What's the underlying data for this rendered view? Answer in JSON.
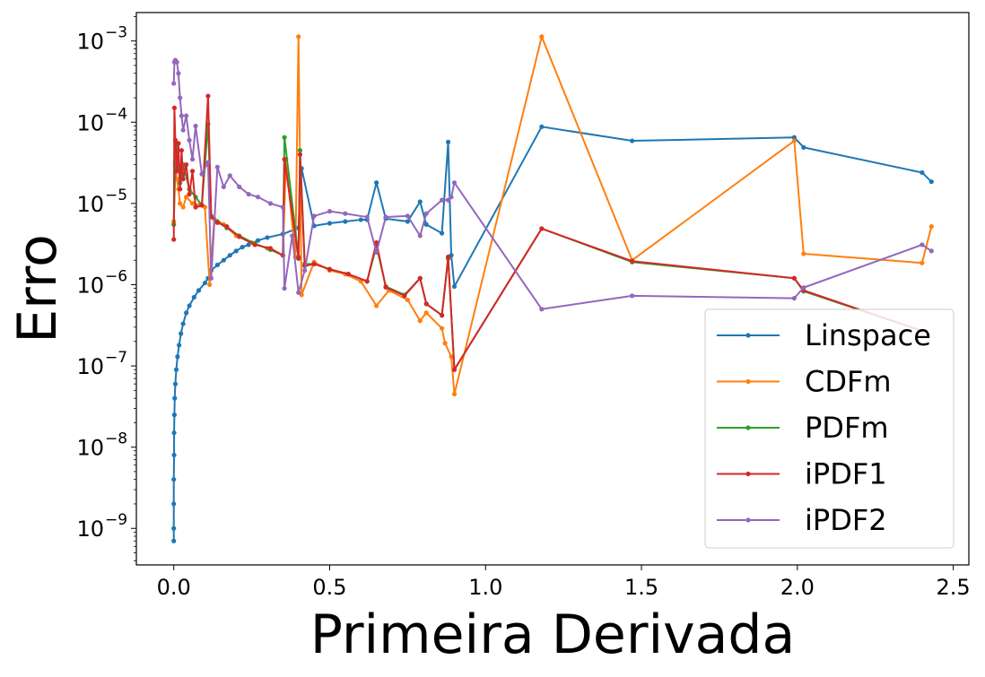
{
  "chart_data": {
    "type": "line",
    "title": "",
    "xlabel": "Primeira Derivada",
    "ylabel": "Erro",
    "xlim": [
      -0.12,
      2.55
    ],
    "ylim_log10": [
      -9.45,
      -2.65
    ],
    "y_scale": "log",
    "grid": false,
    "legend_position": "lower-right",
    "x_ticks": [
      {
        "value": 0.0,
        "label": "0.0"
      },
      {
        "value": 0.5,
        "label": "0.5"
      },
      {
        "value": 1.0,
        "label": "1.0"
      },
      {
        "value": 1.5,
        "label": "1.5"
      },
      {
        "value": 2.0,
        "label": "2.0"
      },
      {
        "value": 2.5,
        "label": "2.5"
      }
    ],
    "y_ticks": [
      {
        "exponent": -9,
        "base": "10",
        "power": "−9"
      },
      {
        "exponent": -8,
        "base": "10",
        "power": "−8"
      },
      {
        "exponent": -7,
        "base": "10",
        "power": "−7"
      },
      {
        "exponent": -6,
        "base": "10",
        "power": "−6"
      },
      {
        "exponent": -5,
        "base": "10",
        "power": "−5"
      },
      {
        "exponent": -4,
        "base": "10",
        "power": "−4"
      },
      {
        "exponent": -3,
        "base": "10",
        "power": "−3"
      }
    ],
    "series": [
      {
        "name": "Linspace",
        "color": "#1f77b4",
        "points": [
          [
            0.0,
            7e-10
          ],
          [
            0.0,
            1e-09
          ],
          [
            0.0,
            2e-09
          ],
          [
            0.0,
            4e-09
          ],
          [
            0.001,
            8e-09
          ],
          [
            0.001,
            1.5e-08
          ],
          [
            0.002,
            2.5e-08
          ],
          [
            0.003,
            4e-08
          ],
          [
            0.005,
            6e-08
          ],
          [
            0.008,
            9e-08
          ],
          [
            0.012,
            1.3e-07
          ],
          [
            0.017,
            1.8e-07
          ],
          [
            0.023,
            2.5e-07
          ],
          [
            0.03,
            3.3e-07
          ],
          [
            0.04,
            4.5e-07
          ],
          [
            0.05,
            5.5e-07
          ],
          [
            0.065,
            7e-07
          ],
          [
            0.08,
            8.5e-07
          ],
          [
            0.1,
            1.05e-06
          ],
          [
            0.11,
            1.2e-06
          ],
          [
            0.12,
            1.5e-06
          ],
          [
            0.14,
            1.75e-06
          ],
          [
            0.16,
            2e-06
          ],
          [
            0.18,
            2.3e-06
          ],
          [
            0.2,
            2.6e-06
          ],
          [
            0.22,
            2.9e-06
          ],
          [
            0.24,
            3.1e-06
          ],
          [
            0.27,
            3.5e-06
          ],
          [
            0.3,
            3.8e-06
          ],
          [
            0.35,
            4.2e-06
          ],
          [
            0.4,
            5e-06
          ],
          [
            0.41,
            2.7e-05
          ],
          [
            0.45,
            5.3e-06
          ],
          [
            0.5,
            5.7e-06
          ],
          [
            0.55,
            6e-06
          ],
          [
            0.6,
            6.3e-06
          ],
          [
            0.62,
            6.3e-06
          ],
          [
            0.65,
            1.8e-05
          ],
          [
            0.68,
            6.5e-06
          ],
          [
            0.75,
            6e-06
          ],
          [
            0.79,
            1.05e-05
          ],
          [
            0.81,
            5.5e-06
          ],
          [
            0.86,
            4.3e-06
          ],
          [
            0.88,
            5.7e-05
          ],
          [
            0.89,
            2.3e-06
          ],
          [
            0.9,
            9.5e-07
          ],
          [
            1.18,
            8.8e-05
          ],
          [
            1.47,
            5.9e-05
          ],
          [
            1.99,
            6.5e-05
          ],
          [
            2.02,
            4.9e-05
          ],
          [
            2.4,
            2.4e-05
          ],
          [
            2.43,
            1.85e-05
          ]
        ]
      },
      {
        "name": "CDFm",
        "color": "#ff7f0e",
        "points": [
          [
            0.0,
            6e-06
          ],
          [
            0.005,
            3e-05
          ],
          [
            0.01,
            2e-05
          ],
          [
            0.015,
            1.5e-05
          ],
          [
            0.02,
            1e-05
          ],
          [
            0.03,
            9e-06
          ],
          [
            0.04,
            1.2e-05
          ],
          [
            0.06,
            1e-05
          ],
          [
            0.08,
            9.5e-06
          ],
          [
            0.1,
            9e-06
          ],
          [
            0.115,
            1e-06
          ],
          [
            0.13,
            6.5e-06
          ],
          [
            0.16,
            5.5e-06
          ],
          [
            0.2,
            4e-06
          ],
          [
            0.25,
            3.3e-06
          ],
          [
            0.3,
            2.8e-06
          ],
          [
            0.35,
            2.3e-06
          ],
          [
            0.36,
            3.5e-05
          ],
          [
            0.39,
            2.2e-06
          ],
          [
            0.4,
            0.00113
          ],
          [
            0.41,
            7.5e-07
          ],
          [
            0.45,
            1.9e-06
          ],
          [
            0.5,
            1.5e-06
          ],
          [
            0.55,
            1.35e-06
          ],
          [
            0.6,
            1.1e-06
          ],
          [
            0.65,
            5.5e-07
          ],
          [
            0.69,
            8.5e-07
          ],
          [
            0.75,
            6.5e-07
          ],
          [
            0.79,
            3.6e-07
          ],
          [
            0.81,
            4.5e-07
          ],
          [
            0.86,
            2.9e-07
          ],
          [
            0.87,
            1.9e-07
          ],
          [
            0.89,
            1.3e-07
          ],
          [
            0.9,
            4.5e-08
          ],
          [
            1.18,
            0.00113
          ],
          [
            1.47,
            2e-06
          ],
          [
            1.99,
            5.9e-05
          ],
          [
            2.02,
            2.4e-06
          ],
          [
            2.4,
            1.85e-06
          ],
          [
            2.43,
            5.2e-06
          ]
        ]
      },
      {
        "name": "PDFm",
        "color": "#2ca02c",
        "points": [
          [
            0.0,
            5.5e-06
          ],
          [
            0.005,
            3.2e-05
          ],
          [
            0.01,
            5e-05
          ],
          [
            0.02,
            1.8e-05
          ],
          [
            0.03,
            3e-05
          ],
          [
            0.05,
            1.5e-05
          ],
          [
            0.07,
            1.2e-05
          ],
          [
            0.09,
            9.5e-06
          ],
          [
            0.11,
            9.5e-05
          ],
          [
            0.12,
            7e-06
          ],
          [
            0.14,
            6e-06
          ],
          [
            0.17,
            5e-06
          ],
          [
            0.21,
            4e-06
          ],
          [
            0.26,
            3.2e-06
          ],
          [
            0.31,
            2.7e-06
          ],
          [
            0.35,
            2.3e-06
          ],
          [
            0.355,
            6.5e-05
          ],
          [
            0.4,
            2.2e-06
          ],
          [
            0.405,
            4.5e-05
          ],
          [
            0.42,
            1.8e-06
          ],
          [
            0.45,
            1.8e-06
          ],
          [
            0.5,
            1.55e-06
          ],
          [
            0.56,
            1.35e-06
          ],
          [
            0.62,
            1.1e-06
          ],
          [
            0.65,
            3e-06
          ],
          [
            0.68,
            9.5e-07
          ],
          [
            0.74,
            7.5e-07
          ],
          [
            0.79,
            1.2e-06
          ],
          [
            0.81,
            5.8e-07
          ],
          [
            0.86,
            4.2e-07
          ],
          [
            0.88,
            2.1e-06
          ],
          [
            0.9,
            9e-08
          ],
          [
            1.18,
            4.9e-06
          ],
          [
            1.47,
            1.9e-06
          ],
          [
            1.99,
            1.2e-06
          ],
          [
            2.02,
            8.3e-07
          ],
          [
            2.4,
            2.7e-07
          ]
        ]
      },
      {
        "name": "iPDF1",
        "color": "#d62728",
        "points": [
          [
            0.0,
            3.6e-06
          ],
          [
            0.002,
            0.00015
          ],
          [
            0.005,
            6e-05
          ],
          [
            0.01,
            2.5e-05
          ],
          [
            0.015,
            5.5e-05
          ],
          [
            0.02,
            1.5e-05
          ],
          [
            0.025,
            4.5e-05
          ],
          [
            0.03,
            2e-05
          ],
          [
            0.04,
            3e-05
          ],
          [
            0.05,
            1.3e-05
          ],
          [
            0.06,
            2.5e-05
          ],
          [
            0.07,
            9e-06
          ],
          [
            0.09,
            9.5e-06
          ],
          [
            0.11,
            0.00021
          ],
          [
            0.12,
            6.8e-06
          ],
          [
            0.14,
            5.8e-06
          ],
          [
            0.17,
            5.2e-06
          ],
          [
            0.21,
            3.9e-06
          ],
          [
            0.26,
            3.1e-06
          ],
          [
            0.31,
            2.8e-06
          ],
          [
            0.35,
            2.3e-06
          ],
          [
            0.355,
            3.5e-05
          ],
          [
            0.4,
            2.1e-06
          ],
          [
            0.405,
            4e-05
          ],
          [
            0.42,
            1.7e-06
          ],
          [
            0.45,
            1.8e-06
          ],
          [
            0.5,
            1.55e-06
          ],
          [
            0.56,
            1.35e-06
          ],
          [
            0.62,
            1.1e-06
          ],
          [
            0.65,
            3.3e-06
          ],
          [
            0.68,
            9.3e-07
          ],
          [
            0.74,
            7.3e-07
          ],
          [
            0.79,
            1.2e-06
          ],
          [
            0.81,
            5.8e-07
          ],
          [
            0.86,
            4.2e-07
          ],
          [
            0.88,
            2.2e-06
          ],
          [
            0.9,
            9e-08
          ],
          [
            1.18,
            4.9e-06
          ],
          [
            1.47,
            1.95e-06
          ],
          [
            1.99,
            1.2e-06
          ],
          [
            2.02,
            8.5e-07
          ],
          [
            2.4,
            2.7e-07
          ]
        ]
      },
      {
        "name": "iPDF2",
        "color": "#9467bd",
        "points": [
          [
            0.0,
            0.0003
          ],
          [
            0.002,
            0.00055
          ],
          [
            0.005,
            0.00058
          ],
          [
            0.01,
            0.00055
          ],
          [
            0.015,
            0.0004
          ],
          [
            0.02,
            0.0002
          ],
          [
            0.025,
            0.00012
          ],
          [
            0.03,
            8e-05
          ],
          [
            0.04,
            0.00012
          ],
          [
            0.05,
            6e-05
          ],
          [
            0.06,
            3.5e-05
          ],
          [
            0.07,
            9e-05
          ],
          [
            0.09,
            2.3e-05
          ],
          [
            0.11,
            3.2e-05
          ],
          [
            0.12,
            1.2e-06
          ],
          [
            0.14,
            2.8e-05
          ],
          [
            0.16,
            1.6e-05
          ],
          [
            0.18,
            2.2e-05
          ],
          [
            0.21,
            1.6e-05
          ],
          [
            0.24,
            1.3e-05
          ],
          [
            0.27,
            1.2e-05
          ],
          [
            0.31,
            1e-05
          ],
          [
            0.35,
            9e-06
          ],
          [
            0.355,
            9e-07
          ],
          [
            0.38,
            4e-06
          ],
          [
            0.4,
            8e-07
          ],
          [
            0.42,
            1.5e-06
          ],
          [
            0.45,
            7e-06
          ],
          [
            0.5,
            8e-06
          ],
          [
            0.55,
            7.5e-06
          ],
          [
            0.62,
            6.8e-06
          ],
          [
            0.65,
            2.5e-06
          ],
          [
            0.68,
            6.8e-06
          ],
          [
            0.75,
            7e-06
          ],
          [
            0.79,
            4e-06
          ],
          [
            0.81,
            7.5e-06
          ],
          [
            0.86,
            1.1e-05
          ],
          [
            0.88,
            1.1e-05
          ],
          [
            0.89,
            1.2e-05
          ],
          [
            0.9,
            1.8e-05
          ],
          [
            1.18,
            5e-07
          ],
          [
            1.47,
            7.3e-07
          ],
          [
            1.99,
            6.8e-07
          ],
          [
            2.02,
            9.2e-07
          ],
          [
            2.4,
            3.1e-06
          ],
          [
            2.43,
            2.6e-06
          ]
        ]
      }
    ]
  }
}
